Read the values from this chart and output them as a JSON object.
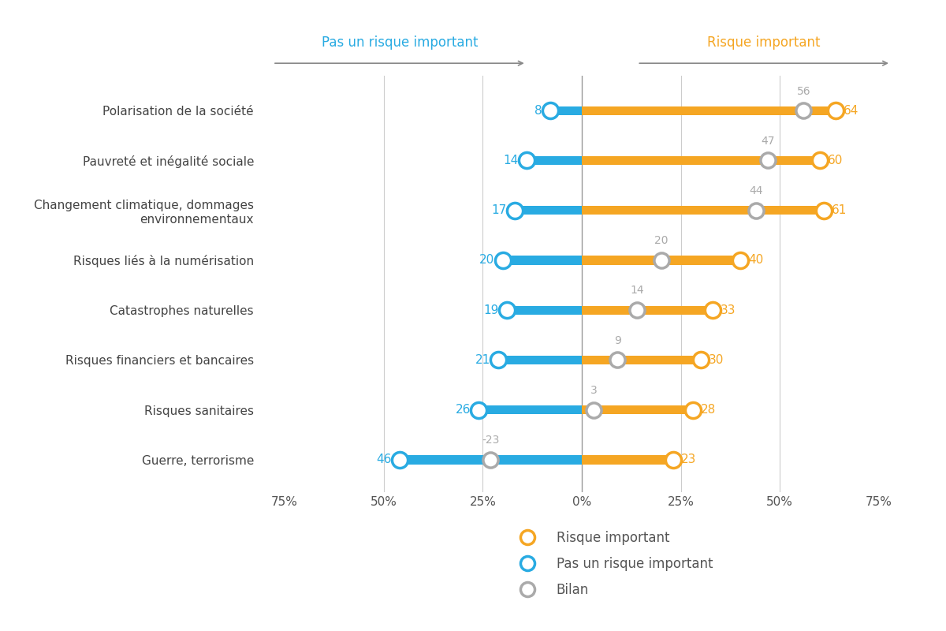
{
  "categories": [
    "Polarisation de la société",
    "Pauvreté et inégalité sociale",
    "Changement climatique, dommages\nenvironnementaux",
    "Risques liés à la numérisation",
    "Catastrophes naturelles",
    "Risques financiers et bancaires",
    "Risques sanitaires",
    "Guerre, terrorisme"
  ],
  "blue_values": [
    8,
    14,
    17,
    20,
    19,
    21,
    26,
    46
  ],
  "orange_values": [
    64,
    60,
    61,
    40,
    33,
    30,
    28,
    23
  ],
  "bilan_values": [
    56,
    47,
    44,
    20,
    14,
    9,
    3,
    -23
  ],
  "blue_color": "#29ABE2",
  "orange_color": "#F5A623",
  "gray_color": "#AAAAAA",
  "text_color": "#555555",
  "xlim_min": -80,
  "xlim_max": 80,
  "xticks": [
    -75,
    -50,
    -25,
    0,
    25,
    50,
    75
  ],
  "xtick_labels": [
    "75%",
    "50%",
    "25%",
    "0%",
    "25%",
    "50%",
    "75%"
  ],
  "header_left": "Pas un risque important",
  "header_right": "Risque important",
  "legend_items": [
    "Risque important",
    "Pas un risque important",
    "Bilan"
  ],
  "legend_colors": [
    "#F5A623",
    "#29ABE2",
    "#AAAAAA"
  ],
  "bar_height": 0.18,
  "marker_linewidth": 2.5
}
